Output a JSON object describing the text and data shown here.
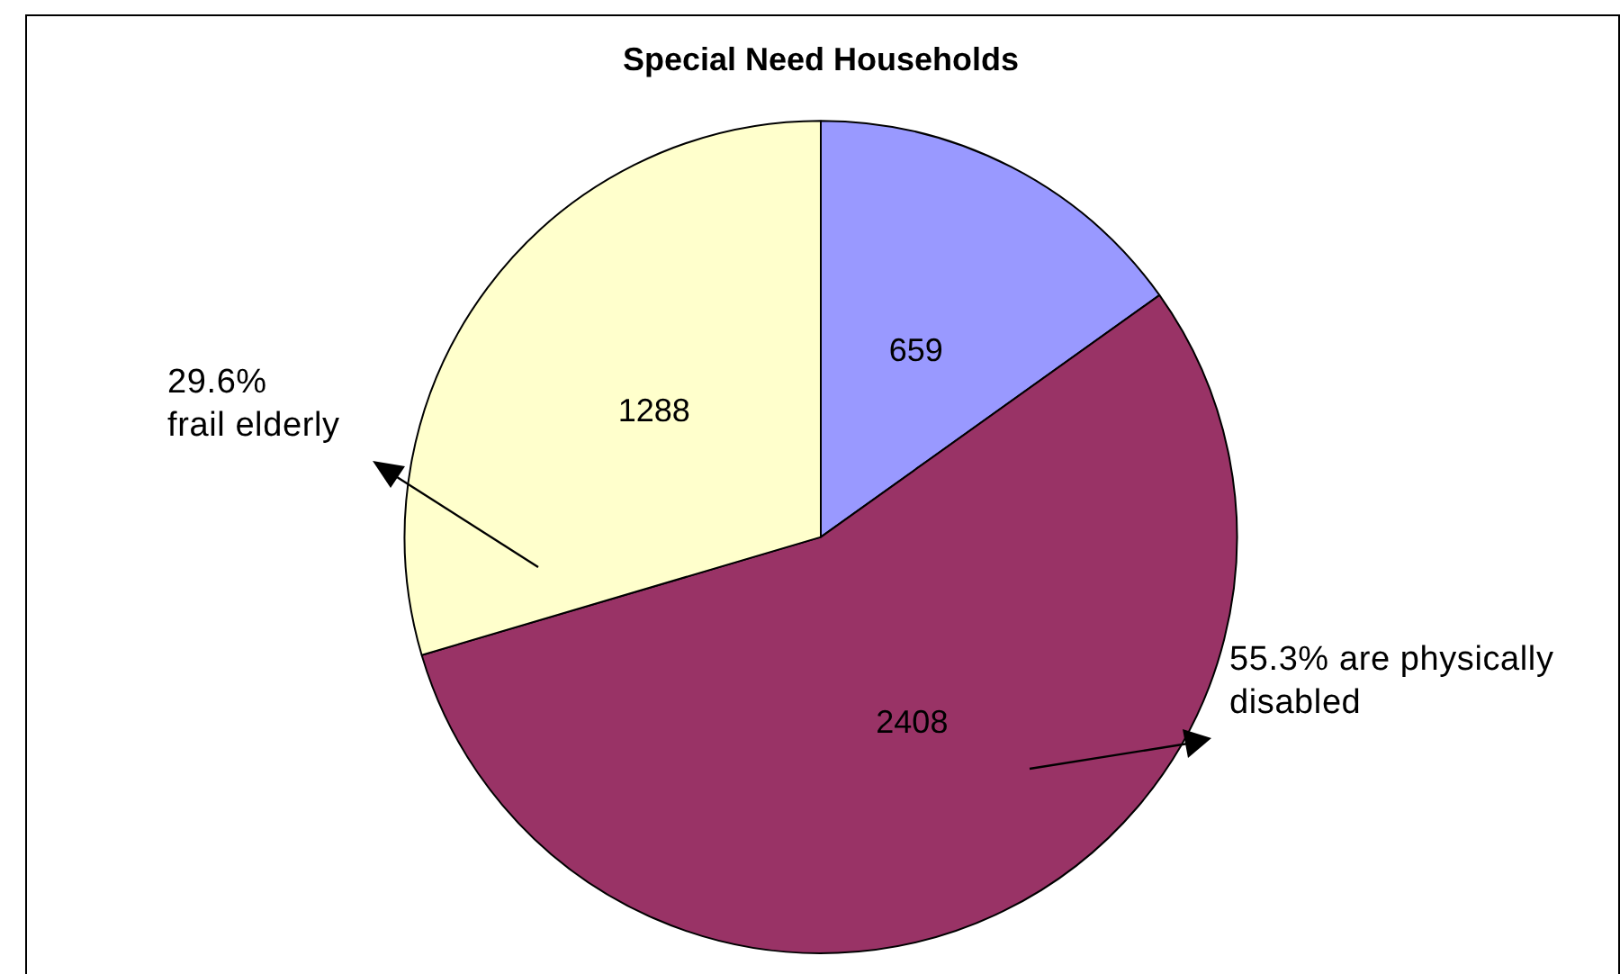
{
  "chart_data": {
    "type": "pie",
    "title": "Special Need Households",
    "categories": [
      null,
      null,
      null
    ],
    "values": [
      659,
      2408,
      1288
    ],
    "colors": [
      "#9999ff",
      "#993366",
      "#ffffcc"
    ],
    "data_labels": true,
    "legend": false,
    "annotations": [
      "29.6%\nfrail elderly",
      "55.3% are physically\ndisabled"
    ]
  }
}
